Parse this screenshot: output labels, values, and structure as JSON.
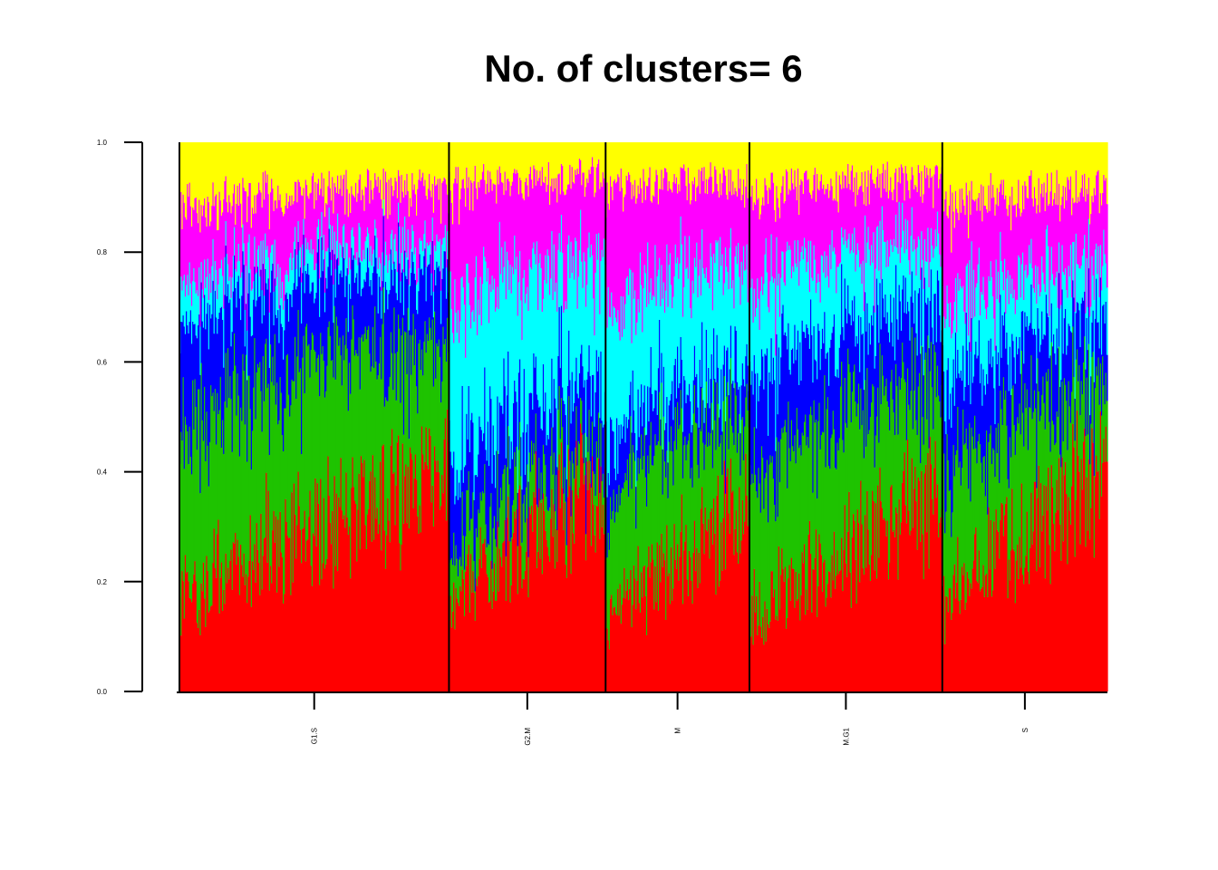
{
  "chart_data": {
    "type": "bar",
    "subtype": "stacked-structure-plot",
    "title": "No. of clusters= 6",
    "xlabel": "",
    "ylabel": "",
    "ylim": [
      0,
      1
    ],
    "yticks": [
      "0.0",
      "0.2",
      "0.4",
      "0.6",
      "0.8",
      "1.0"
    ],
    "grid": false,
    "legend": "none",
    "categories": [
      "G1.S",
      "G2.M",
      "M",
      "M.G1",
      "S"
    ],
    "group_sample_counts": [
      253,
      147,
      135,
      181,
      155
    ],
    "series": [
      {
        "color": "#FF0000",
        "group_mean_values": [
          0.3,
          0.28,
          0.24,
          0.26,
          0.3
        ]
      },
      {
        "color": "#1EC300",
        "group_mean_values": [
          0.26,
          0.08,
          0.18,
          0.22,
          0.18
        ]
      },
      {
        "color": "#0000FF",
        "group_mean_values": [
          0.16,
          0.14,
          0.1,
          0.16,
          0.14
        ]
      },
      {
        "color": "#00FFFF",
        "group_mean_values": [
          0.06,
          0.25,
          0.22,
          0.14,
          0.12
        ]
      },
      {
        "color": "#FF00FF",
        "group_mean_values": [
          0.12,
          0.18,
          0.18,
          0.14,
          0.16
        ]
      },
      {
        "color": "#FFFF00",
        "group_mean_values": [
          0.1,
          0.07,
          0.08,
          0.08,
          0.1
        ]
      }
    ]
  }
}
